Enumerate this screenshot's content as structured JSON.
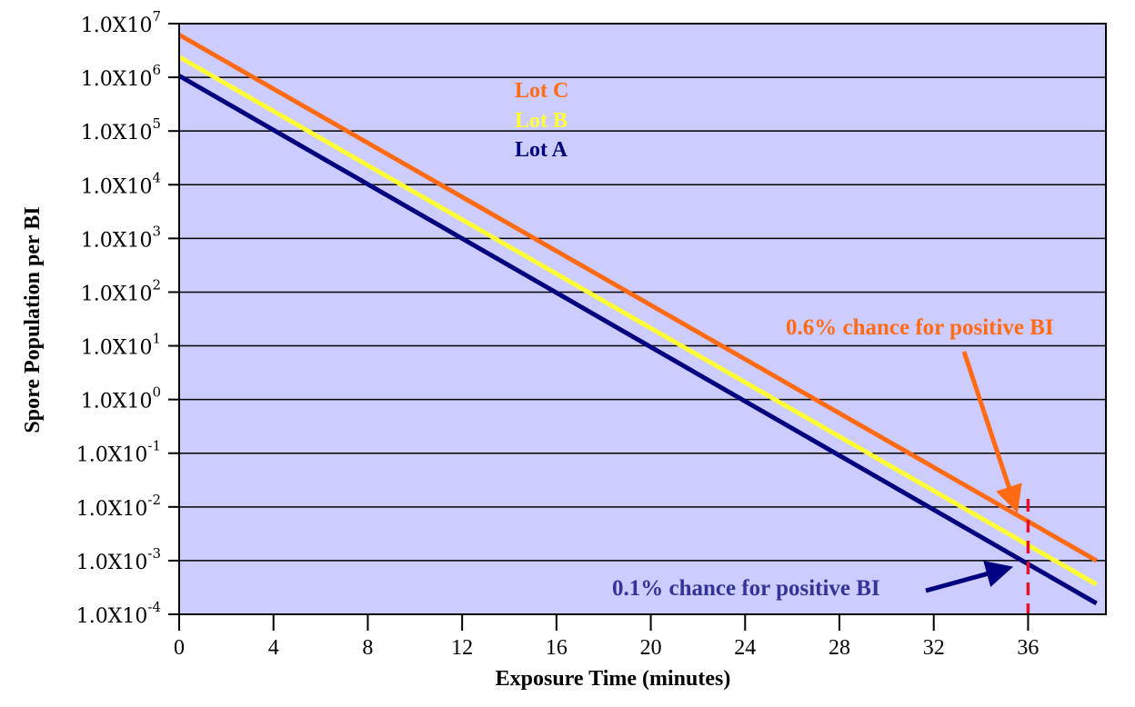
{
  "chart_data": {
    "type": "line",
    "title": "",
    "xlabel": "Exposure Time (minutes)",
    "ylabel": "Spore Population per BI",
    "yscale": "log",
    "xlim": [
      0,
      39.3
    ],
    "ylim": [
      0.0001,
      10000000
    ],
    "grid": true,
    "background": "#ccccff",
    "x_ticks": [
      0,
      4,
      8,
      12,
      16,
      20,
      24,
      28,
      32,
      36
    ],
    "x_tick_labels": [
      "0",
      "4",
      "8",
      "12",
      "16",
      "20",
      "24",
      "28",
      "32",
      "36"
    ],
    "y_ticks_exp": [
      7,
      6,
      5,
      4,
      3,
      2,
      1,
      0,
      -1,
      -2,
      -3,
      -4
    ],
    "y_tick_labels": [
      {
        "base": "1.0X10",
        "exp": "7"
      },
      {
        "base": "1.0X10",
        "exp": "6"
      },
      {
        "base": "1.0X10",
        "exp": "5"
      },
      {
        "base": "1.0X10",
        "exp": "4"
      },
      {
        "base": "1.0X10",
        "exp": "3"
      },
      {
        "base": "1.0X10",
        "exp": "2"
      },
      {
        "base": "1.0X10",
        "exp": "1"
      },
      {
        "base": "1.0X10",
        "exp": "0"
      },
      {
        "base": "1.0X10",
        "exp": "-1"
      },
      {
        "base": "1.0X10",
        "exp": "-2"
      },
      {
        "base": "1.0X10",
        "exp": "-3"
      },
      {
        "base": "1.0X10",
        "exp": "-4"
      }
    ],
    "series": [
      {
        "name": "Lot C",
        "color": "#ff6a13",
        "x": [
          0,
          38.9
        ],
        "y": [
          6200000,
          0.001
        ]
      },
      {
        "name": "Lot B",
        "color": "#ffff33",
        "x": [
          0,
          38.9
        ],
        "y": [
          2400000,
          0.00036
        ]
      },
      {
        "name": "Lot A",
        "color": "#000080",
        "x": [
          0,
          38.9
        ],
        "y": [
          1070000,
          0.00016
        ]
      }
    ],
    "legend": {
      "position": "top-center",
      "entries": [
        {
          "label": "Lot C",
          "color": "#ff6a13"
        },
        {
          "label": "Lot B",
          "color": "#ffff33"
        },
        {
          "label": "Lot A",
          "color": "#000080"
        }
      ]
    },
    "reference_line": {
      "x": 36,
      "color": "#e8102a",
      "style": "dashed"
    },
    "annotations": [
      {
        "text": "0.6% chance for positive BI",
        "color": "#ff6a13",
        "points_to": {
          "x": 35.8,
          "y": 0.0068
        }
      },
      {
        "text": "0.1% chance for positive BI",
        "color": "#333399",
        "points_to": {
          "x": 35.8,
          "y": 0.001
        }
      }
    ]
  }
}
